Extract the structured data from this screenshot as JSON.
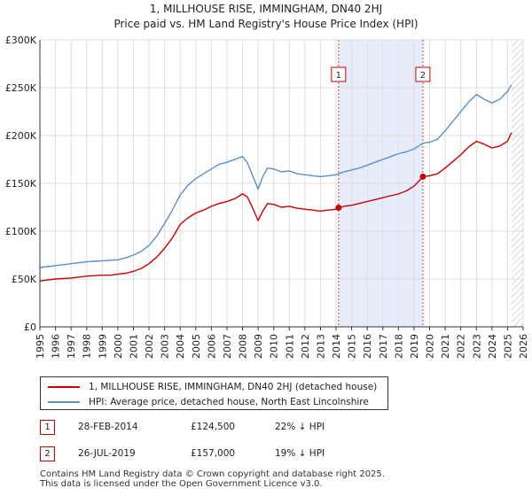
{
  "chart_data": {
    "type": "line",
    "title": "1, MILLHOUSE RISE, IMMINGHAM, DN40 2HJ",
    "subtitle": "Price paid vs. HM Land Registry's House Price Index (HPI)",
    "xlim": [
      1995,
      2026
    ],
    "ylim": [
      0,
      300000
    ],
    "y_ticks": [
      {
        "value": 0,
        "label": "£0"
      },
      {
        "value": 50000,
        "label": "£50K"
      },
      {
        "value": 100000,
        "label": "£100K"
      },
      {
        "value": 150000,
        "label": "£150K"
      },
      {
        "value": 200000,
        "label": "£200K"
      },
      {
        "value": 250000,
        "label": "£250K"
      },
      {
        "value": 300000,
        "label": "£300K"
      }
    ],
    "x_ticks": [
      "1995",
      "1996",
      "1997",
      "1998",
      "1999",
      "2000",
      "2001",
      "2002",
      "2003",
      "2004",
      "2005",
      "2006",
      "2007",
      "2008",
      "2009",
      "2010",
      "2011",
      "2012",
      "2013",
      "2014",
      "2015",
      "2016",
      "2017",
      "2018",
      "2019",
      "2020",
      "2021",
      "2022",
      "2023",
      "2024",
      "2025",
      "2026"
    ],
    "grid": true,
    "data_end": 2025.25,
    "shaded_period": [
      2014.16,
      2019.57
    ],
    "series": [
      {
        "name": "1, MILLHOUSE RISE, IMMINGHAM, DN40 2HJ (detached house)",
        "color": "#cc0000",
        "x": [
          1995.0,
          1995.5,
          1996.0,
          1996.5,
          1997.0,
          1997.5,
          1998.0,
          1998.5,
          1999.0,
          1999.5,
          2000.0,
          2000.5,
          2001.0,
          2001.5,
          2002.0,
          2002.5,
          2003.0,
          2003.5,
          2004.0,
          2004.5,
          2005.0,
          2005.5,
          2006.0,
          2006.5,
          2007.0,
          2007.5,
          2008.0,
          2008.3,
          2008.6,
          2009.0,
          2009.3,
          2009.6,
          2010.0,
          2010.5,
          2011.0,
          2011.5,
          2012.0,
          2012.5,
          2013.0,
          2013.5,
          2014.0,
          2014.16,
          2014.5,
          2015.0,
          2015.5,
          2016.0,
          2016.5,
          2017.0,
          2017.5,
          2018.0,
          2018.5,
          2019.0,
          2019.3,
          2019.57,
          2020.0,
          2020.5,
          2021.0,
          2021.5,
          2022.0,
          2022.5,
          2023.0,
          2023.5,
          2024.0,
          2024.5,
          2025.0,
          2025.25
        ],
        "y": [
          48000,
          49000,
          50000,
          50500,
          51000,
          52000,
          53000,
          53500,
          54000,
          54000,
          55000,
          56000,
          58000,
          61000,
          66000,
          73000,
          82000,
          93000,
          107000,
          114000,
          119000,
          122000,
          126000,
          129000,
          131000,
          134000,
          139000,
          136000,
          126000,
          111000,
          121000,
          129000,
          128000,
          125000,
          126000,
          124000,
          123000,
          122000,
          121000,
          122000,
          123000,
          124500,
          126000,
          127000,
          129000,
          131000,
          133000,
          135000,
          137000,
          139000,
          142000,
          147000,
          152000,
          157000,
          158000,
          160000,
          166000,
          173000,
          180000,
          188000,
          194000,
          191000,
          187000,
          189000,
          194000,
          203000
        ]
      },
      {
        "name": "HPI: Average price, detached house, North East Lincolnshire",
        "color": "#5b8fc9",
        "x": [
          1995.0,
          1995.5,
          1996.0,
          1996.5,
          1997.0,
          1997.5,
          1998.0,
          1998.5,
          1999.0,
          1999.5,
          2000.0,
          2000.5,
          2001.0,
          2001.5,
          2002.0,
          2002.5,
          2003.0,
          2003.5,
          2004.0,
          2004.5,
          2005.0,
          2005.5,
          2006.0,
          2006.5,
          2007.0,
          2007.5,
          2008.0,
          2008.3,
          2008.6,
          2009.0,
          2009.3,
          2009.6,
          2010.0,
          2010.5,
          2011.0,
          2011.5,
          2012.0,
          2012.5,
          2013.0,
          2013.5,
          2014.0,
          2014.16,
          2014.5,
          2015.0,
          2015.5,
          2016.0,
          2016.5,
          2017.0,
          2017.5,
          2018.0,
          2018.5,
          2019.0,
          2019.3,
          2019.57,
          2020.0,
          2020.5,
          2021.0,
          2021.5,
          2022.0,
          2022.5,
          2023.0,
          2023.5,
          2024.0,
          2024.5,
          2025.0,
          2025.25
        ],
        "y": [
          62000,
          63000,
          64000,
          65000,
          66000,
          67000,
          68000,
          68500,
          69000,
          69500,
          70000,
          72000,
          75000,
          79000,
          85000,
          95000,
          108000,
          122000,
          138000,
          148000,
          155000,
          160000,
          165000,
          170000,
          172000,
          175000,
          178000,
          172000,
          160000,
          144000,
          157000,
          166000,
          165000,
          162000,
          163000,
          160000,
          159000,
          158000,
          157000,
          158000,
          159000,
          160000,
          162000,
          164000,
          166000,
          169000,
          172000,
          175000,
          178000,
          181000,
          183000,
          186000,
          189000,
          192000,
          193000,
          196000,
          205000,
          215000,
          225000,
          235000,
          243000,
          238000,
          234000,
          238000,
          246000,
          253000
        ]
      }
    ],
    "markers": [
      {
        "label": "1",
        "x": 2014.16,
        "y": 124500
      },
      {
        "label": "2",
        "x": 2019.57,
        "y": 157000
      }
    ]
  },
  "legend": {
    "red_label": "1, MILLHOUSE RISE, IMMINGHAM, DN40 2HJ (detached house)",
    "blue_label": "HPI: Average price, detached house, North East Lincolnshire"
  },
  "sales": [
    {
      "num": "1",
      "date": "28-FEB-2014",
      "price": "£124,500",
      "diff": "22% ↓ HPI"
    },
    {
      "num": "2",
      "date": "26-JUL-2019",
      "price": "£157,000",
      "diff": "19% ↓ HPI"
    }
  ],
  "footer": {
    "line1": "Contains HM Land Registry data © Crown copyright and database right 2025.",
    "line2": "This data is licensed under the Open Government Licence v3.0."
  }
}
